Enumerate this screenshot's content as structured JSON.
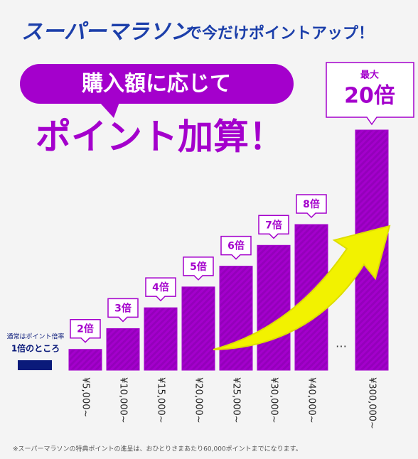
{
  "chart_data": {
    "type": "bar",
    "title": "スーパーマラソン",
    "subtitle": "で今だけポイントアップ！",
    "bubble_text": "購入額に応じて",
    "headline": "ポイント加算！",
    "categories": [
      "¥5,000~",
      "¥10,000~",
      "¥15,000~",
      "¥20,000~",
      "¥25,000~",
      "¥30,000~",
      "¥40,000~",
      "¥300,000~"
    ],
    "values": [
      2,
      3,
      4,
      5,
      6,
      7,
      8,
      20
    ],
    "value_labels": [
      "2倍",
      "3倍",
      "4倍",
      "5倍",
      "6倍",
      "7倍",
      "8倍",
      "20倍"
    ],
    "max_label": "最大",
    "ellipsis": "…",
    "normal_note": [
      "通常はポイント倍率",
      "1倍のところ"
    ],
    "color": "#a400cc",
    "normal_color": "#0a1a7a",
    "ylim": [
      1,
      20
    ],
    "footnote": "※スーパーマラソンの特典ポイントの進呈は、おひとりさまあたり60,000ポイントまでになります。"
  }
}
